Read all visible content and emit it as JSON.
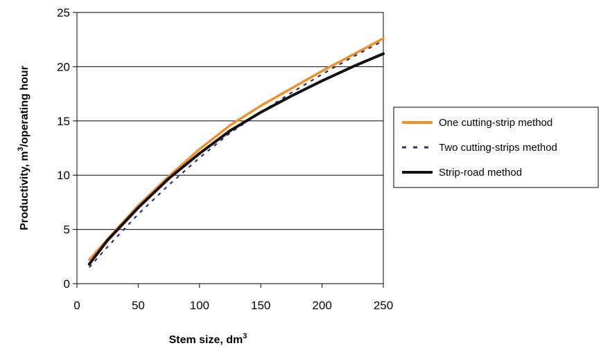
{
  "chart_data": {
    "type": "line",
    "title": "",
    "xlabel": "Stem size, dm",
    "xlabel_sup": "3",
    "ylabel_pre": "Productivity, m",
    "ylabel_sup": "3",
    "ylabel_post": "/operating hour",
    "xlim": [
      0,
      250
    ],
    "ylim": [
      0,
      25
    ],
    "xticks": [
      "0",
      "50",
      "100",
      "150",
      "200",
      "250"
    ],
    "yticks": [
      "0",
      "5",
      "10",
      "15",
      "20",
      "25"
    ],
    "grid": "horizontal",
    "legend_position": "right",
    "series": [
      {
        "name": "One cutting-strip method",
        "color": "#f0902a",
        "style": "solid",
        "x": [
          10,
          25,
          50,
          75,
          100,
          125,
          150,
          175,
          200,
          225,
          250
        ],
        "y": [
          2.2,
          4.1,
          7.2,
          9.9,
          12.4,
          14.6,
          16.4,
          18.0,
          19.6,
          21.1,
          22.6
        ]
      },
      {
        "name": "Two cutting-strips method",
        "color": "#2b2b7a",
        "style": "dashed",
        "x": [
          10,
          25,
          50,
          75,
          100,
          125,
          150,
          175,
          200,
          225,
          250
        ],
        "y": [
          1.5,
          3.4,
          6.4,
          9.1,
          11.6,
          13.9,
          15.8,
          17.6,
          19.3,
          20.9,
          22.4
        ]
      },
      {
        "name": "Strip-road method",
        "color": "#111111",
        "style": "solid-thick",
        "x": [
          10,
          25,
          50,
          75,
          100,
          125,
          150,
          175,
          200,
          225,
          250
        ],
        "y": [
          1.8,
          4.0,
          7.0,
          9.7,
          12.0,
          14.1,
          15.8,
          17.3,
          18.7,
          20.0,
          21.2
        ]
      }
    ]
  }
}
